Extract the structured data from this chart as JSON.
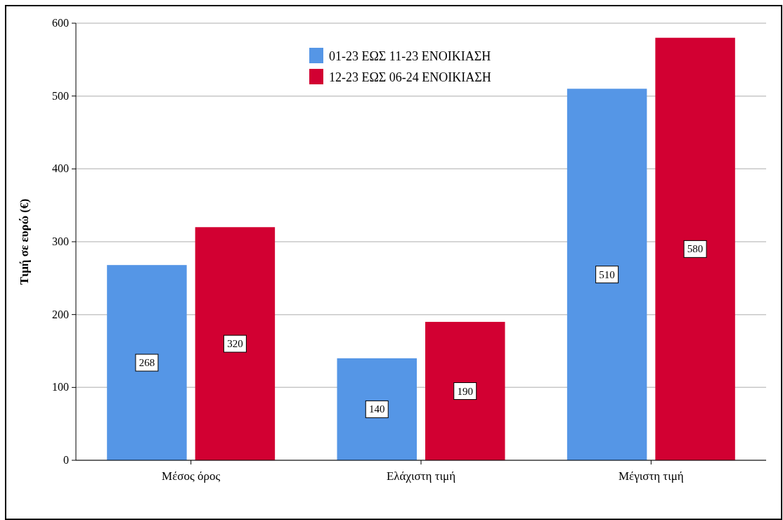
{
  "chart_data": {
    "type": "bar",
    "ylabel": "Τιμή σε ευρώ (€)",
    "categories": [
      "Μέσος όρος",
      "Ελάχιστη τιμή",
      "Μέγιστη τιμή"
    ],
    "series": [
      {
        "name": "01-23 ΕΩΣ 11-23 ΕΝΟΙΚΙΑΣΗ",
        "color": "#5596e6",
        "values": [
          268,
          140,
          510
        ]
      },
      {
        "name": "12-23 ΕΩΣ 06-24 ΕΝΟΙΚΙΑΣΗ",
        "color": "#d20032",
        "values": [
          320,
          190,
          580
        ]
      }
    ],
    "ylim": [
      0,
      600
    ],
    "yticks": [
      0,
      100,
      200,
      300,
      400,
      500,
      600
    ],
    "grid": "y",
    "legend": "top",
    "data_labels": true
  }
}
